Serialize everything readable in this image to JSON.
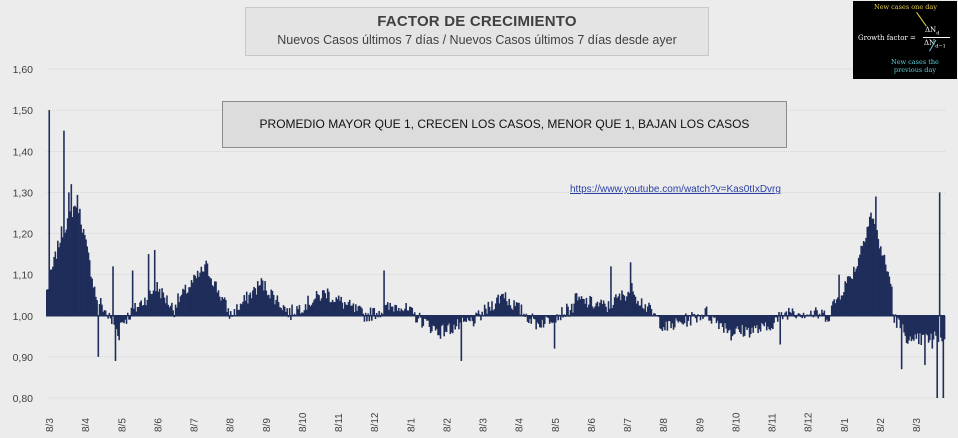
{
  "header": {
    "title": "FACTOR DE CRECIMIENTO",
    "subtitle": "Nuevos Casos últimos 7 días / Nuevos Casos últimos 7 días desde ayer"
  },
  "note": "PROMEDIO MAYOR QUE 1, CRECEN LOS CASOS, MENOR QUE 1, BAJAN LOS CASOS",
  "link": "https://www.youtube.com/watch?v=Kas0tIxDvrg",
  "formula": {
    "top_label": "New cases one day",
    "label": "Growth factor =",
    "numerator": "ΔN",
    "numerator_sub": "d",
    "denominator": "ΔN",
    "denominator_sub": "d−1",
    "bottom_label_1": "New cases the",
    "bottom_label_2": "previous day"
  },
  "colors": {
    "series": "#1f2d5a",
    "background": "#ececec",
    "grid": "#c0c0c0"
  },
  "chart_data": {
    "type": "bar",
    "baseline": 1.0,
    "ylim": [
      0.8,
      1.6
    ],
    "yticks": [
      "0,80",
      "0,90",
      "1,00",
      "1,10",
      "1,20",
      "1,30",
      "1,40",
      "1,50",
      "1,60"
    ],
    "yvalues": [
      0.8,
      0.9,
      1.0,
      1.1,
      1.2,
      1.3,
      1.4,
      1.5,
      1.6
    ],
    "xtick_labels": [
      "8/3",
      "8/4",
      "8/5",
      "8/6",
      "8/7",
      "8/8",
      "8/9",
      "8/10",
      "8/11",
      "8/12",
      "8/1",
      "8/2",
      "8/3",
      "8/4",
      "8/5",
      "8/6",
      "8/7",
      "8/8",
      "8/9",
      "8/10",
      "8/11",
      "8/12",
      "8/1",
      "8/2",
      "8/3"
    ],
    "n_points": 733,
    "segments": [
      {
        "x0": 0,
        "x1": 12,
        "start": 1.06,
        "end": 1.2
      },
      {
        "x0": 12,
        "x1": 25,
        "start": 1.2,
        "end": 1.28
      },
      {
        "x0": 25,
        "x1": 40,
        "start": 1.28,
        "end": 1.05
      },
      {
        "x0": 40,
        "x1": 60,
        "start": 1.05,
        "end": 0.95
      },
      {
        "x0": 60,
        "x1": 90,
        "start": 0.98,
        "end": 1.07
      },
      {
        "x0": 90,
        "x1": 105,
        "start": 1.07,
        "end": 1.01
      },
      {
        "x0": 105,
        "x1": 130,
        "start": 1.03,
        "end": 1.12
      },
      {
        "x0": 130,
        "x1": 150,
        "start": 1.12,
        "end": 1.0
      },
      {
        "x0": 150,
        "x1": 175,
        "start": 1.0,
        "end": 1.08
      },
      {
        "x0": 175,
        "x1": 200,
        "start": 1.08,
        "end": 1.0
      },
      {
        "x0": 200,
        "x1": 230,
        "start": 1.01,
        "end": 1.06
      },
      {
        "x0": 230,
        "x1": 260,
        "start": 1.05,
        "end": 1.0
      },
      {
        "x0": 260,
        "x1": 290,
        "start": 1.0,
        "end": 1.03
      },
      {
        "x0": 290,
        "x1": 320,
        "start": 1.02,
        "end": 0.96
      },
      {
        "x0": 320,
        "x1": 350,
        "start": 0.96,
        "end": 0.99
      },
      {
        "x0": 350,
        "x1": 375,
        "start": 0.99,
        "end": 1.06
      },
      {
        "x0": 375,
        "x1": 400,
        "start": 1.04,
        "end": 0.98
      },
      {
        "x0": 400,
        "x1": 430,
        "start": 0.98,
        "end": 1.02
      },
      {
        "x0": 430,
        "x1": 460,
        "start": 1.04,
        "end": 1.02
      },
      {
        "x0": 460,
        "x1": 480,
        "start": 1.03,
        "end": 1.07
      },
      {
        "x0": 480,
        "x1": 505,
        "start": 1.05,
        "end": 0.97
      },
      {
        "x0": 505,
        "x1": 540,
        "start": 0.97,
        "end": 1.01
      },
      {
        "x0": 540,
        "x1": 560,
        "start": 1.0,
        "end": 0.96
      },
      {
        "x0": 560,
        "x1": 590,
        "start": 0.96,
        "end": 0.97
      },
      {
        "x0": 590,
        "x1": 610,
        "start": 0.98,
        "end": 1.02
      },
      {
        "x0": 610,
        "x1": 640,
        "start": 1.01,
        "end": 1.0
      },
      {
        "x0": 640,
        "x1": 660,
        "start": 1.02,
        "end": 1.12
      },
      {
        "x0": 660,
        "x1": 672,
        "start": 1.12,
        "end": 1.25
      },
      {
        "x0": 672,
        "x1": 690,
        "start": 1.25,
        "end": 1.06
      },
      {
        "x0": 690,
        "x1": 708,
        "start": 1.0,
        "end": 0.92
      },
      {
        "x0": 708,
        "x1": 733,
        "start": 0.94,
        "end": 0.95
      }
    ],
    "spikes": [
      {
        "x": 2,
        "value": 1.5
      },
      {
        "x": 14,
        "value": 1.45
      },
      {
        "x": 20,
        "value": 1.32
      },
      {
        "x": 18,
        "value": 1.3
      },
      {
        "x": 42,
        "value": 0.9
      },
      {
        "x": 56,
        "value": 0.89
      },
      {
        "x": 54,
        "value": 1.12
      },
      {
        "x": 70,
        "value": 1.11
      },
      {
        "x": 83,
        "value": 1.15
      },
      {
        "x": 88,
        "value": 1.16
      },
      {
        "x": 275,
        "value": 1.11
      },
      {
        "x": 338,
        "value": 0.89
      },
      {
        "x": 406,
        "value": 0.98
      },
      {
        "x": 414,
        "value": 0.92
      },
      {
        "x": 460,
        "value": 1.12
      },
      {
        "x": 476,
        "value": 1.13
      },
      {
        "x": 558,
        "value": 0.94
      },
      {
        "x": 598,
        "value": 0.93
      },
      {
        "x": 646,
        "value": 1.1
      },
      {
        "x": 664,
        "value": 1.17
      },
      {
        "x": 676,
        "value": 1.29
      },
      {
        "x": 697,
        "value": 0.87
      },
      {
        "x": 716,
        "value": 0.88
      },
      {
        "x": 726,
        "value": 0.8
      },
      {
        "x": 728,
        "value": 1.3
      },
      {
        "x": 731,
        "value": 0.8
      },
      {
        "x": 722,
        "value": 0.92
      }
    ]
  }
}
